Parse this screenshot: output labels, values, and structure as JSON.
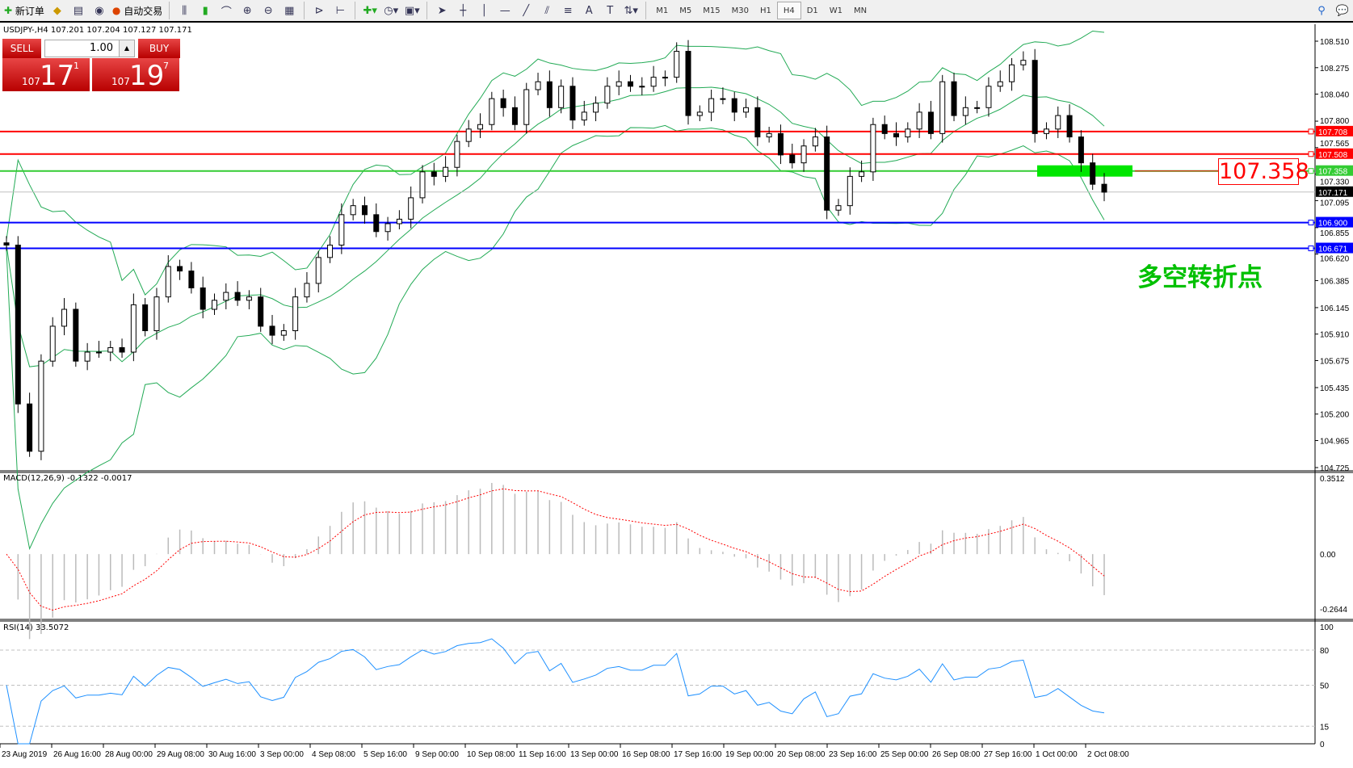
{
  "toolbar": {
    "new_order": "新订单",
    "auto_trading": "自动交易",
    "timeframes": [
      "M1",
      "M5",
      "M15",
      "M30",
      "H1",
      "H4",
      "D1",
      "W1",
      "MN"
    ],
    "active_timeframe": "H4"
  },
  "chart": {
    "title": "USDJPY-,H4  107.201 107.204 107.127 107.171",
    "symbol": "USDJPY-",
    "timeframe": "H4"
  },
  "trade": {
    "sell": "SELL",
    "buy": "BUY",
    "lot": "1.00",
    "sell_prefix": "107",
    "sell_big": "17",
    "sell_sup": "1",
    "buy_prefix": "107",
    "buy_big": "19",
    "buy_sup": "7"
  },
  "annotation": {
    "level_label": "107.358",
    "text": "多空转折点",
    "text_color": "#00c000"
  },
  "indicators": {
    "macd": "MACD(12,26,9) -0.1322 -0.0017",
    "rsi": "RSI(14) 33.5072"
  },
  "chart_data": {
    "type": "candlestick",
    "price_ticks": [
      "108.510",
      "108.275",
      "108.040",
      "107.800",
      "107.565",
      "107.330",
      "107.095",
      "106.855",
      "106.620",
      "106.385",
      "106.145",
      "105.910",
      "105.675",
      "105.435",
      "105.200",
      "104.965",
      "104.725"
    ],
    "ylim": [
      104.725,
      108.51
    ],
    "first_open": 106.72,
    "closes": [
      106.7,
      105.29,
      104.87,
      105.67,
      105.98,
      106.13,
      105.67,
      105.75,
      105.75,
      105.79,
      105.75,
      106.17,
      105.94,
      106.24,
      106.51,
      106.47,
      106.32,
      106.13,
      106.21,
      106.28,
      106.21,
      106.24,
      105.98,
      105.9,
      105.94,
      106.24,
      106.36,
      106.59,
      106.7,
      106.97,
      107.05,
      106.97,
      106.82,
      106.89,
      106.93,
      107.12,
      107.35,
      107.31,
      107.39,
      107.62,
      107.73,
      107.77,
      108.0,
      107.92,
      107.77,
      108.08,
      108.15,
      107.92,
      108.11,
      107.81,
      107.88,
      107.96,
      108.11,
      108.15,
      108.11,
      108.11,
      108.19,
      108.19,
      108.42,
      107.85,
      107.88,
      108.0,
      108.0,
      107.88,
      107.92,
      107.66,
      107.69,
      107.5,
      107.43,
      107.58,
      107.66,
      107.01,
      107.05,
      107.31,
      107.35,
      107.77,
      107.69,
      107.66,
      107.73,
      107.88,
      107.69,
      108.15,
      107.85,
      107.92,
      107.92,
      108.11,
      108.15,
      108.3,
      108.34,
      107.69,
      107.73,
      107.85,
      107.66,
      107.43,
      107.24,
      107.17
    ],
    "current_price": "107.171",
    "hlines": [
      {
        "price": "107.708",
        "color": "#ff0000"
      },
      {
        "price": "107.508",
        "color": "#ff0000"
      },
      {
        "price": "107.358",
        "color": "#33cc33"
      },
      {
        "price": "106.900",
        "color": "#0000ff"
      },
      {
        "price": "106.671",
        "color": "#0000ff"
      }
    ],
    "time_labels": [
      "23 Aug 2019",
      "26 Aug 16:00",
      "28 Aug 00:00",
      "29 Aug 08:00",
      "30 Aug 16:00",
      "3 Sep 00:00",
      "4 Sep 08:00",
      "5 Sep 16:00",
      "9 Sep 00:00",
      "10 Sep 08:00",
      "11 Sep 16:00",
      "13 Sep 00:00",
      "16 Sep 08:00",
      "17 Sep 16:00",
      "19 Sep 00:00",
      "20 Sep 08:00",
      "23 Sep 16:00",
      "25 Sep 00:00",
      "26 Sep 08:00",
      "27 Sep 16:00",
      "1 Oct 00:00",
      "2 Oct 08:00"
    ],
    "macd_ticks": [
      "0.3512",
      "0.00",
      "-0.2644"
    ],
    "macd_ylim": [
      -0.2644,
      0.3512
    ],
    "rsi_ticks": [
      "100",
      "80",
      "50",
      "15",
      "0"
    ],
    "rsi_levels": [
      80,
      50,
      15
    ],
    "colors": {
      "bands": "#22aa55",
      "macd_signal": "#ff0000",
      "macd_hist": "#bbbbbb",
      "rsi": "#1e90ff"
    }
  }
}
